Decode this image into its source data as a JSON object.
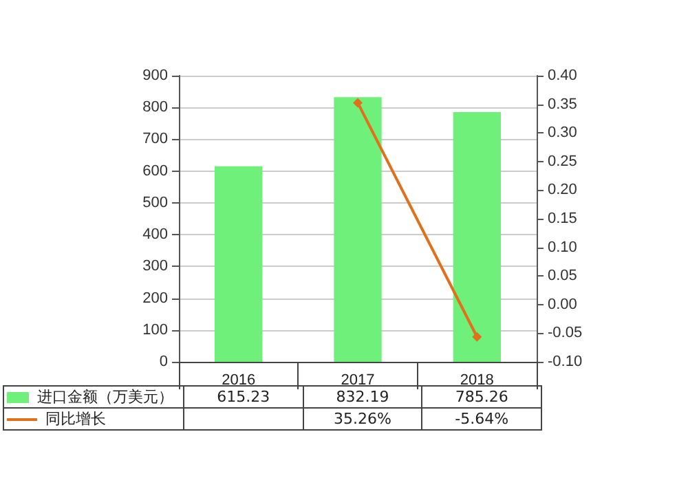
{
  "chart_data": {
    "type": "bar",
    "categories": [
      "2016",
      "2017",
      "2018"
    ],
    "series": [
      {
        "name": "进口金额（万美元）",
        "color": "#6ef07a",
        "values": [
          615.23,
          832.19,
          785.26
        ],
        "value_labels": [
          "615.23",
          "832.19",
          "785.26"
        ]
      },
      {
        "name": "同比增长",
        "type": "line",
        "axis": "y2",
        "color": "#e0701c",
        "values": [
          null,
          0.3526,
          -0.0564
        ],
        "value_labels": [
          null,
          "35.26%",
          "-5.64%"
        ]
      }
    ],
    "ylim": [
      0,
      900
    ],
    "yticks": [
      0,
      100,
      200,
      300,
      400,
      500,
      600,
      700,
      800,
      900
    ],
    "y2lim": [
      -0.1,
      0.4
    ],
    "y2ticks": [
      {
        "value": -0.1,
        "label": "-0.10"
      },
      {
        "value": -0.05,
        "label": "-0.05"
      },
      {
        "value": 0,
        "label": "0.00"
      },
      {
        "value": 0.05,
        "label": "0.05"
      },
      {
        "value": 0.1,
        "label": "0.10"
      },
      {
        "value": 0.15,
        "label": "0.15"
      },
      {
        "value": 0.2,
        "label": "0.20"
      },
      {
        "value": 0.25,
        "label": "0.25"
      },
      {
        "value": 0.3,
        "label": "0.30"
      },
      {
        "value": 0.35,
        "label": "0.35"
      },
      {
        "value": 0.4,
        "label": "0.40"
      }
    ],
    "grid": "y",
    "legend": "bottom",
    "marker": "diamond"
  }
}
